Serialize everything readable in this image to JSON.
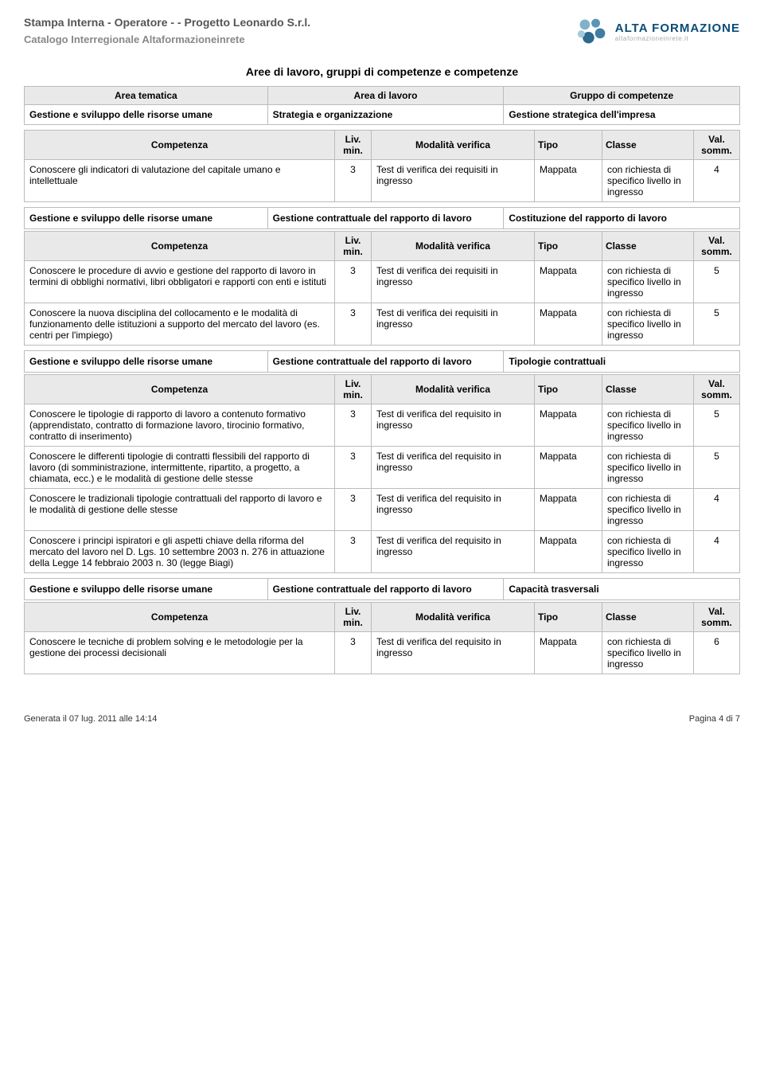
{
  "header": {
    "line1": "Stampa Interna - Operatore - - Progetto Leonardo S.r.l.",
    "line2": "Catalogo Interregionale Altaformazioneinrete",
    "logo_text1": "ALTA FORMAZIONE",
    "logo_text2": "altaformazioneinrete.it",
    "logo_colors": [
      "#7fb2c9",
      "#5a95b6",
      "#3f7ea1",
      "#2c6a8f"
    ]
  },
  "main_title": "Aree di lavoro, gruppi di competenze e competenze",
  "area_header_labels": {
    "tematica": "Area tematica",
    "lavoro": "Area di lavoro",
    "gruppo": "Gruppo di competenze"
  },
  "comp_header_labels": {
    "competenza": "Competenza",
    "liv": "Liv. min.",
    "modalita": "Modalità verifica",
    "tipo": "Tipo",
    "classe": "Classe",
    "val": "Val. somm."
  },
  "col_widths": {
    "comp": "auto",
    "liv": 46,
    "mod": 205,
    "tipo": 85,
    "classe": 115,
    "val": 58
  },
  "colors": {
    "header_bg": "#e9e9e9",
    "border": "#bbbbbb",
    "text": "#000000"
  },
  "area_row": {
    "tematica": "Gestione e sviluppo delle risorse umane",
    "lavoro": "Strategia e organizzazione",
    "gruppo": "Gestione strategica dell'impresa"
  },
  "groups": [
    {
      "comp_rows": [
        {
          "competenza": "Conoscere gli indicatori di valutazione del capitale umano e intellettuale",
          "liv": "3",
          "modalita": "Test di verifica dei requisiti in ingresso",
          "tipo": "Mappata",
          "classe": "con richiesta di specifico livello in ingresso",
          "val": "4"
        }
      ]
    },
    {
      "group_header": {
        "tematica": "Gestione e sviluppo delle risorse umane",
        "lavoro": "Gestione contrattuale del rapporto di lavoro",
        "gruppo": "Costituzione del rapporto di lavoro"
      },
      "comp_rows": [
        {
          "competenza": "Conoscere le procedure di avvio e gestione del rapporto di lavoro in termini di obblighi normativi, libri obbligatori e rapporti con enti e istituti",
          "liv": "3",
          "modalita": "Test di verifica dei requisiti in ingresso",
          "tipo": "Mappata",
          "classe": "con richiesta di specifico livello in ingresso",
          "val": "5"
        },
        {
          "competenza": "Conoscere la nuova disciplina del collocamento e le modalità di funzionamento delle istituzioni a supporto del mercato del lavoro (es. centri per l'impiego)",
          "liv": "3",
          "modalita": "Test di verifica dei requisiti in ingresso",
          "tipo": "Mappata",
          "classe": "con richiesta di specifico livello in ingresso",
          "val": "5"
        }
      ]
    },
    {
      "group_header": {
        "tematica": "Gestione e sviluppo delle risorse umane",
        "lavoro": "Gestione contrattuale del rapporto di lavoro",
        "gruppo": "Tipologie contrattuali"
      },
      "comp_rows": [
        {
          "competenza": "Conoscere le tipologie di rapporto di lavoro a contenuto formativo (apprendistato, contratto di formazione lavoro, tirocinio formativo, contratto di inserimento)",
          "liv": "3",
          "modalita": "Test di verifica del requisito in ingresso",
          "tipo": "Mappata",
          "classe": "con richiesta di specifico livello in ingresso",
          "val": "5"
        },
        {
          "competenza": "Conoscere le differenti tipologie di contratti flessibili del rapporto di lavoro (di somministrazione, intermittente, ripartito, a progetto, a chiamata, ecc.) e le modalità di gestione delle stesse",
          "liv": "3",
          "modalita": "Test di verifica del requisito in ingresso",
          "tipo": "Mappata",
          "classe": "con richiesta di specifico livello in ingresso",
          "val": "5"
        },
        {
          "competenza": "Conoscere le tradizionali tipologie contrattuali del rapporto di lavoro e le modalità di gestione delle stesse",
          "liv": "3",
          "modalita": "Test di verifica del requisito in ingresso",
          "tipo": "Mappata",
          "classe": "con richiesta di specifico livello in ingresso",
          "val": "4"
        },
        {
          "competenza": "Conoscere i principi ispiratori e gli aspetti chiave della riforma del mercato del lavoro nel D. Lgs. 10 settembre 2003 n. 276 in attuazione della Legge 14 febbraio 2003 n. 30 (legge Biagi)",
          "liv": "3",
          "modalita": "Test di verifica del requisito in ingresso",
          "tipo": "Mappata",
          "classe": "con richiesta di specifico livello in ingresso",
          "val": "4"
        }
      ]
    },
    {
      "group_header": {
        "tematica": "Gestione e sviluppo delle risorse umane",
        "lavoro": "Gestione contrattuale del rapporto di lavoro",
        "gruppo": "Capacità trasversali"
      },
      "comp_rows": [
        {
          "competenza": "Conoscere le tecniche di problem solving e le metodologie per la gestione dei processi decisionali",
          "liv": "3",
          "modalita": "Test di verifica del requisito in ingresso",
          "tipo": "Mappata",
          "classe": "con richiesta di specifico livello in ingresso",
          "val": "6"
        }
      ]
    }
  ],
  "footer": {
    "generated": "Generata il 07 lug. 2011 alle 14:14",
    "page": "Pagina 4 di 7"
  }
}
